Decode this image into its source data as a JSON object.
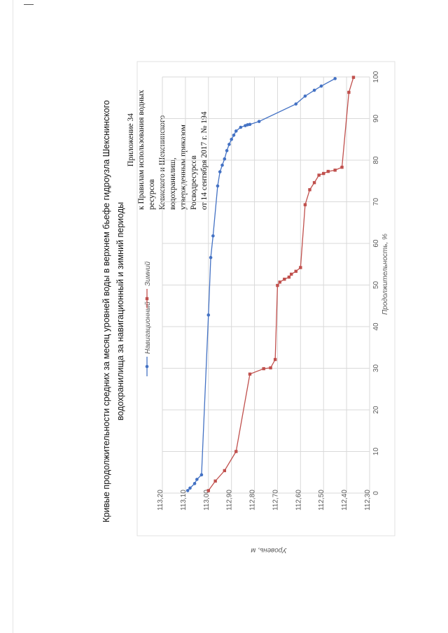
{
  "page": {
    "appendix_lines": [
      "Приложение 34",
      "к Правилам использования водных ресурсов",
      "Ковжского и Шекснинского водохранилищ,",
      "утвержденным приказом Росводресурсов",
      "от 14 сентября 2017 г. № 194"
    ]
  },
  "colors": {
    "navigation": "#4472c4",
    "winter": "#c0504d",
    "grid": "#d9d9d9",
    "axis_text": "#595959"
  },
  "chart_data": {
    "type": "line",
    "title_lines": [
      "Кривые продолжительности средних за месяц уровней воды в верхнем бьефе гидроузла Шекснинского",
      "водохранилища за навигационный и зимний периоды"
    ],
    "xlabel": "Продолжительность, %",
    "ylabel": "Уровень, м",
    "xlim": [
      0,
      100
    ],
    "ylim": [
      112.3,
      113.2
    ],
    "x_ticks": [
      "0",
      "10",
      "20",
      "30",
      "40",
      "50",
      "60",
      "70",
      "80",
      "90",
      "100"
    ],
    "y_ticks": [
      "113,20",
      "113,10",
      "113,00",
      "112,90",
      "112,80",
      "112,70",
      "112,60",
      "112,50",
      "112,40",
      "112,30"
    ],
    "legend_position": "top",
    "series": [
      {
        "name": "Навигационный",
        "x": [
          0.6,
          1.2,
          2.3,
          3.3,
          4.4,
          42.8,
          56.6,
          61.8,
          73.8,
          77.2,
          78.8,
          80.3,
          82.3,
          83.8,
          85.0,
          86.0,
          87.0,
          87.9,
          88.3,
          88.5,
          88.6,
          89.3,
          93.5,
          95.4,
          96.8,
          97.8,
          99.6
        ],
        "y": [
          113.09,
          113.08,
          113.06,
          113.05,
          113.03,
          113.0,
          112.99,
          112.98,
          112.96,
          112.95,
          112.94,
          112.93,
          112.92,
          112.91,
          112.9,
          112.89,
          112.88,
          112.86,
          112.84,
          112.83,
          112.82,
          112.78,
          112.62,
          112.58,
          112.54,
          112.51,
          112.45
        ]
      },
      {
        "name": "Зимний",
        "x": [
          0.6,
          2.9,
          5.4,
          10.0,
          28.6,
          29.9,
          30.1,
          32.1,
          49.9,
          50.7,
          51.4,
          51.9,
          52.6,
          53.3,
          54.2,
          69.3,
          72.9,
          74.6,
          76.4,
          76.8,
          77.3,
          77.6,
          78.3,
          96.3,
          99.9
        ],
        "y": [
          113.0,
          112.97,
          112.93,
          112.88,
          112.82,
          112.76,
          112.73,
          112.71,
          112.7,
          112.69,
          112.67,
          112.65,
          112.64,
          112.62,
          112.6,
          112.58,
          112.56,
          112.54,
          112.52,
          112.5,
          112.48,
          112.45,
          112.42,
          112.39,
          112.37
        ]
      }
    ]
  }
}
